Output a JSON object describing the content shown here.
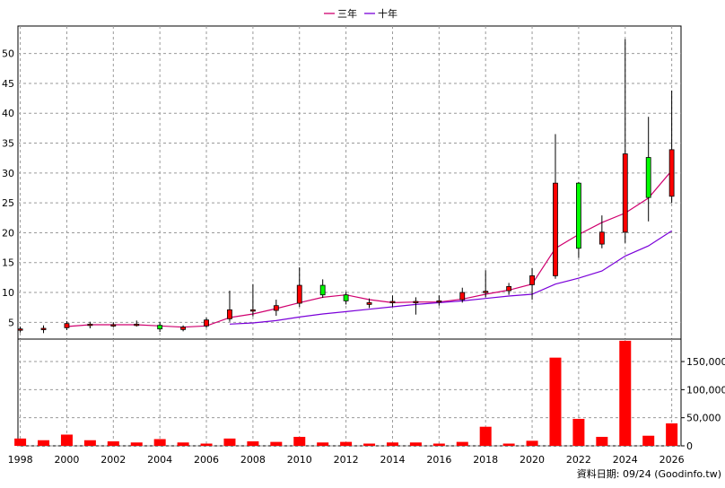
{
  "legend": {
    "items": [
      {
        "label": "三年",
        "color": "#d0006f"
      },
      {
        "label": "十年",
        "color": "#7a00d9"
      }
    ]
  },
  "source_note": "資料日期: 09/24 (Goodinfo.tw)",
  "chart_data": [
    {
      "type": "candlestick",
      "x_ticks": [
        "1998",
        "2000",
        "2002",
        "2004",
        "2006",
        "2008",
        "2010",
        "2012",
        "2014",
        "2016",
        "2018",
        "2020",
        "2022",
        "2024",
        "2026"
      ],
      "y_ticks": [
        5,
        10,
        15,
        20,
        25,
        30,
        35,
        40,
        45,
        50
      ],
      "xlim": [
        1997.9,
        2026.4
      ],
      "ylim": [
        2.2,
        54.6
      ],
      "up_color": "#ff0000",
      "down_color": "#00ff00",
      "candles": [
        {
          "year": 1998,
          "open": 3.8,
          "close": 3.9,
          "high": 4.3,
          "low": 3.3
        },
        {
          "year": 1999,
          "open": 3.9,
          "close": 4.0,
          "high": 4.5,
          "low": 3.2
        },
        {
          "year": 2000,
          "open": 4.1,
          "close": 4.8,
          "high": 5.2,
          "low": 3.7
        },
        {
          "year": 2001,
          "open": 4.5,
          "close": 4.7,
          "high": 5.1,
          "low": 4.0
        },
        {
          "year": 2002,
          "open": 4.5,
          "close": 4.6,
          "high": 5.0,
          "low": 4.2
        },
        {
          "year": 2003,
          "open": 4.6,
          "close": 4.7,
          "high": 5.3,
          "low": 4.3
        },
        {
          "year": 2004,
          "open": 4.5,
          "close": 3.9,
          "high": 5.1,
          "low": 3.4
        },
        {
          "year": 2005,
          "open": 3.8,
          "close": 4.2,
          "high": 4.5,
          "low": 3.5
        },
        {
          "year": 2006,
          "open": 4.4,
          "close": 5.4,
          "high": 5.8,
          "low": 4.1
        },
        {
          "year": 2007,
          "open": 5.6,
          "close": 7.1,
          "high": 10.3,
          "low": 5.1
        },
        {
          "year": 2008,
          "open": 6.9,
          "close": 7.1,
          "high": 11.4,
          "low": 6.0
        },
        {
          "year": 2009,
          "open": 7.0,
          "close": 7.8,
          "high": 8.8,
          "low": 6.1
        },
        {
          "year": 2010,
          "open": 8.2,
          "close": 11.2,
          "high": 14.2,
          "low": 7.6
        },
        {
          "year": 2011,
          "open": 11.2,
          "close": 9.6,
          "high": 12.2,
          "low": 9.1
        },
        {
          "year": 2012,
          "open": 9.6,
          "close": 8.6,
          "high": 10.1,
          "low": 8.0
        },
        {
          "year": 2013,
          "open": 8.0,
          "close": 8.3,
          "high": 9.0,
          "low": 7.4
        },
        {
          "year": 2014,
          "open": 8.4,
          "close": 8.5,
          "high": 9.5,
          "low": 7.6
        },
        {
          "year": 2015,
          "open": 8.4,
          "close": 8.5,
          "high": 9.2,
          "low": 6.3
        },
        {
          "year": 2016,
          "open": 8.4,
          "close": 8.6,
          "high": 9.5,
          "low": 7.8
        },
        {
          "year": 2017,
          "open": 8.8,
          "close": 10.0,
          "high": 10.8,
          "low": 8.3
        },
        {
          "year": 2018,
          "open": 10.0,
          "close": 10.2,
          "high": 13.7,
          "low": 9.2
        },
        {
          "year": 2019,
          "open": 10.3,
          "close": 11.0,
          "high": 11.6,
          "low": 9.6
        },
        {
          "year": 2020,
          "open": 11.3,
          "close": 12.8,
          "high": 14.1,
          "low": 8.8
        },
        {
          "year": 2021,
          "open": 12.8,
          "close": 28.3,
          "high": 36.5,
          "low": 12.3
        },
        {
          "year": 2022,
          "open": 28.3,
          "close": 17.4,
          "high": 28.5,
          "low": 15.8
        },
        {
          "year": 2023,
          "open": 18.1,
          "close": 20.1,
          "high": 22.9,
          "low": 17.4
        },
        {
          "year": 2024,
          "open": 20.1,
          "close": 33.2,
          "high": 52.4,
          "low": 18.3
        },
        {
          "year": 2025,
          "open": 32.6,
          "close": 25.9,
          "high": 39.4,
          "low": 21.9
        },
        {
          "year": 2026,
          "open": 26.1,
          "close": 33.9,
          "high": 43.8,
          "low": 25.0
        }
      ],
      "moving_averages": [
        {
          "name": "三年",
          "color": "#d0006f",
          "points": [
            [
              2000,
              4.3
            ],
            [
              2001,
              4.6
            ],
            [
              2002,
              4.6
            ],
            [
              2003,
              4.6
            ],
            [
              2004,
              4.4
            ],
            [
              2005,
              4.2
            ],
            [
              2006,
              4.4
            ],
            [
              2007,
              5.8
            ],
            [
              2008,
              6.4
            ],
            [
              2009,
              7.3
            ],
            [
              2010,
              8.3
            ],
            [
              2011,
              9.2
            ],
            [
              2012,
              9.6
            ],
            [
              2013,
              8.8
            ],
            [
              2014,
              8.3
            ],
            [
              2015,
              8.4
            ],
            [
              2016,
              8.4
            ],
            [
              2017,
              8.9
            ],
            [
              2018,
              9.7
            ],
            [
              2019,
              10.4
            ],
            [
              2020,
              11.4
            ],
            [
              2021,
              17.4
            ],
            [
              2022,
              19.7
            ],
            [
              2023,
              21.7
            ],
            [
              2024,
              23.3
            ],
            [
              2025,
              25.8
            ],
            [
              2026,
              30.4
            ]
          ]
        },
        {
          "name": "十年",
          "color": "#7a00d9",
          "points": [
            [
              2007,
              4.7
            ],
            [
              2008,
              4.9
            ],
            [
              2009,
              5.3
            ],
            [
              2010,
              5.9
            ],
            [
              2011,
              6.4
            ],
            [
              2012,
              6.8
            ],
            [
              2013,
              7.2
            ],
            [
              2014,
              7.6
            ],
            [
              2015,
              8.0
            ],
            [
              2016,
              8.3
            ],
            [
              2017,
              8.6
            ],
            [
              2018,
              9.0
            ],
            [
              2019,
              9.4
            ],
            [
              2020,
              9.7
            ],
            [
              2021,
              11.4
            ],
            [
              2022,
              12.4
            ],
            [
              2023,
              13.6
            ],
            [
              2024,
              16.1
            ],
            [
              2025,
              17.8
            ],
            [
              2026,
              20.3
            ]
          ]
        }
      ]
    },
    {
      "type": "bar",
      "y_ticks": [
        0,
        50000,
        100000,
        150000
      ],
      "y_tick_labels": [
        "0",
        "50,000",
        "100,000",
        "150,000"
      ],
      "ylim": [
        0,
        190000
      ],
      "bar_color": "#ff0000",
      "x": [
        1998,
        1999,
        2000,
        2001,
        2002,
        2003,
        2004,
        2005,
        2006,
        2007,
        2008,
        2009,
        2010,
        2011,
        2012,
        2013,
        2014,
        2015,
        2016,
        2017,
        2018,
        2019,
        2020,
        2021,
        2022,
        2023,
        2024,
        2025,
        2026
      ],
      "values": [
        13000,
        10000,
        20000,
        10000,
        8000,
        6000,
        12000,
        6000,
        4000,
        13000,
        8000,
        7000,
        16000,
        6000,
        7000,
        4000,
        6000,
        6000,
        4000,
        7000,
        34000,
        4000,
        9000,
        157000,
        48000,
        16000,
        187000,
        18000,
        40000
      ]
    }
  ]
}
